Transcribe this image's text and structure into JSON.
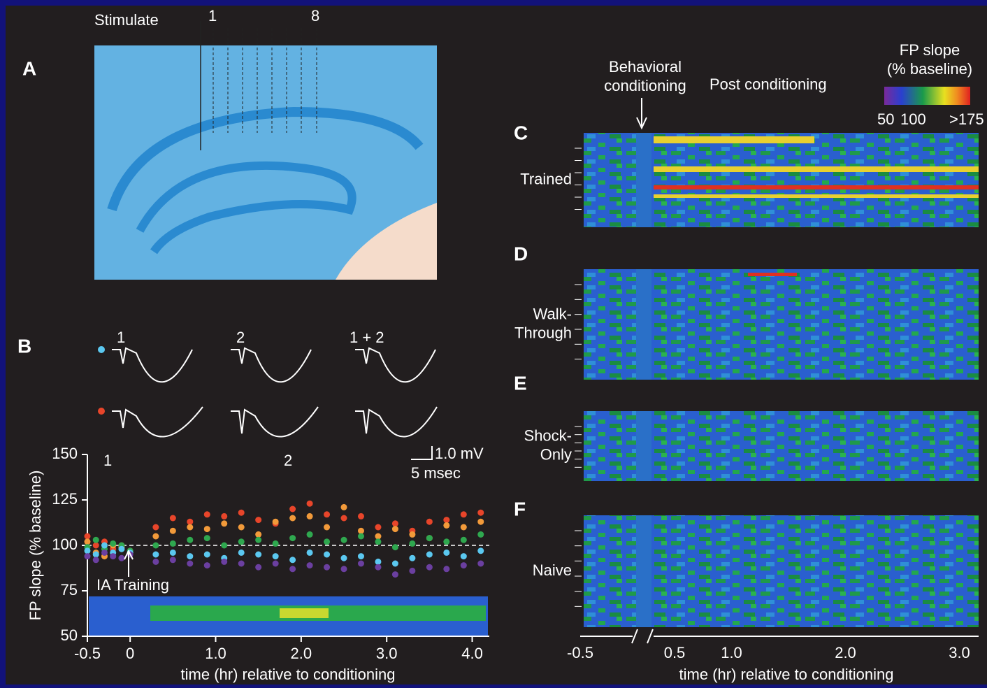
{
  "panel_a": {
    "label": "A",
    "stimulate": "Stimulate",
    "electrode_first": "1",
    "electrode_last": "8"
  },
  "panel_b": {
    "label": "B",
    "trace_labels": [
      "1",
      "2",
      "1 + 2"
    ],
    "scale_bar": [
      "1.0 mV",
      "5 msec"
    ]
  },
  "chart_data": {
    "type": "scatter",
    "ylabel": "FP slope (% baseline)",
    "xlabel": "time (hr) relative to conditioning",
    "annotations": [
      "1",
      "2"
    ],
    "arrow_label": "IA Training",
    "reference_line": 100,
    "xlim": [
      -0.5,
      4.2
    ],
    "ylim": [
      50,
      150
    ],
    "xticks": [
      -0.5,
      0,
      {
        "value": 1,
        "label": "1.0"
      },
      {
        "value": 2,
        "label": "2.0"
      },
      {
        "value": 3,
        "label": "3.0"
      },
      {
        "value": 4,
        "label": "4.0"
      }
    ],
    "yticks": [
      50,
      75,
      100,
      125,
      150
    ],
    "x": [
      -0.5,
      -0.4,
      -0.3,
      -0.2,
      -0.1,
      0,
      0.3,
      0.5,
      0.7,
      0.9,
      1.1,
      1.3,
      1.5,
      1.7,
      1.9,
      2.1,
      2.3,
      2.5,
      2.7,
      2.9,
      3.1,
      3.3,
      3.5,
      3.7,
      3.9,
      4.1
    ],
    "series": [
      {
        "color": "#e8452a",
        "values": [
          105,
          100,
          102,
          98,
          100,
          97,
          110,
          115,
          113,
          117,
          116,
          118,
          114,
          112,
          120,
          123,
          117,
          115,
          116,
          110,
          112,
          108,
          113,
          114,
          117,
          118
        ]
      },
      {
        "color": "#f29a3a",
        "values": [
          102,
          96,
          94,
          100,
          99,
          96,
          105,
          108,
          110,
          109,
          112,
          110,
          106,
          113,
          115,
          116,
          110,
          121,
          108,
          105,
          109,
          106,
          104,
          111,
          110,
          113
        ]
      },
      {
        "color": "#2fa84f",
        "values": [
          99,
          103,
          98,
          101,
          100,
          97,
          100,
          101,
          103,
          104,
          100,
          102,
          103,
          101,
          104,
          106,
          102,
          103,
          105,
          102,
          99,
          101,
          104,
          102,
          103,
          106
        ]
      },
      {
        "color": "#5bc8f0",
        "values": [
          97,
          95,
          100,
          96,
          98,
          96,
          95,
          96,
          94,
          95,
          93,
          96,
          95,
          94,
          92,
          96,
          95,
          93,
          94,
          91,
          90,
          93,
          95,
          96,
          94,
          97
        ]
      },
      {
        "color": "#6b3fa0",
        "values": [
          94,
          92,
          96,
          94,
          93,
          95,
          91,
          92,
          90,
          89,
          91,
          90,
          88,
          90,
          87,
          89,
          88,
          87,
          90,
          88,
          84,
          86,
          88,
          87,
          89,
          90
        ]
      }
    ]
  },
  "heatmaps": {
    "behavioral": [
      "Behavioral",
      "conditioning"
    ],
    "post": "Post conditioning",
    "colorbar": {
      "title": [
        "FP slope",
        "(% baseline)"
      ],
      "labels": [
        "50",
        "100",
        ">175"
      ]
    },
    "panels": [
      {
        "letter": "C",
        "label": [
          "Trained"
        ]
      },
      {
        "letter": "D",
        "label": [
          "Walk-",
          "Through"
        ]
      },
      {
        "letter": "E",
        "label": [
          "Shock-",
          "Only"
        ]
      },
      {
        "letter": "F",
        "label": [
          "Naive"
        ]
      }
    ],
    "xticks": [
      -0.5,
      0.5,
      {
        "value": 1,
        "label": "1.0"
      },
      {
        "value": 2,
        "label": "2.0"
      },
      {
        "value": 3,
        "label": "3.0"
      }
    ],
    "xlabel": "time (hr) relative to conditioning"
  }
}
